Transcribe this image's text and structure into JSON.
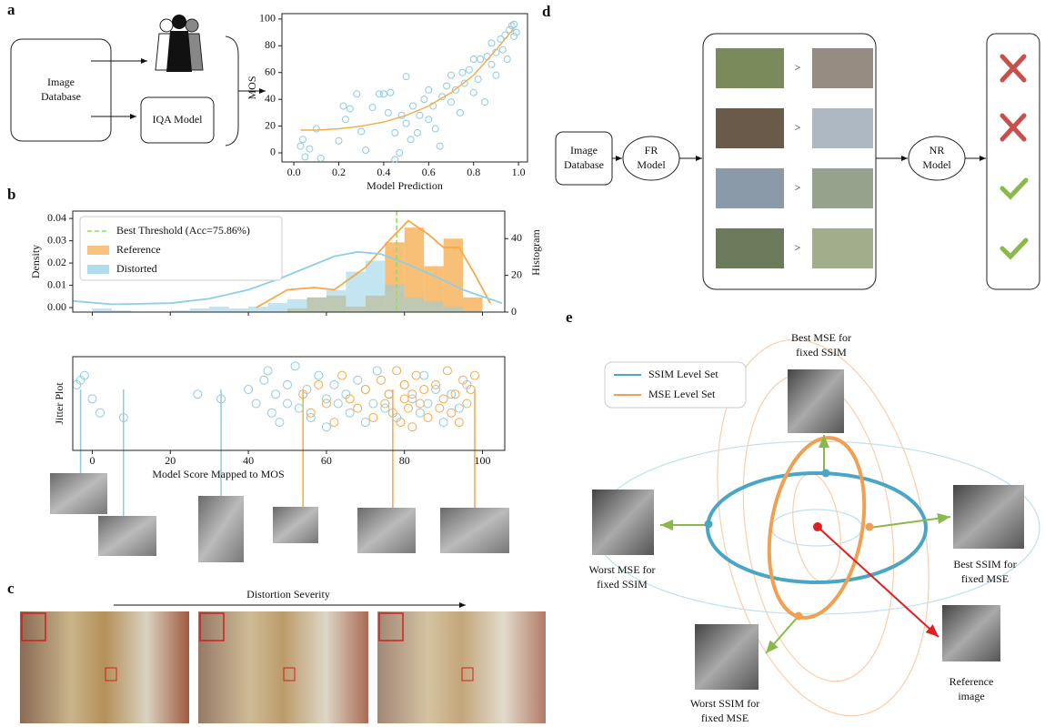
{
  "panel_labels": [
    "a",
    "b",
    "c",
    "d",
    "e"
  ],
  "chart_data": [
    {
      "type": "scatter",
      "xlabel": "Model Prediction",
      "ylabel": "MOS",
      "xlim": [
        -0.053,
        1.04
      ],
      "ylim": [
        -6.8,
        104
      ],
      "xticks": [
        {
          "value": 0,
          "label": "0.0"
        },
        {
          "value": 0.2,
          "label": "0.2"
        },
        {
          "value": 0.4,
          "label": "0.4"
        },
        {
          "value": 0.6,
          "label": "0.6"
        },
        {
          "value": 0.8,
          "label": "0.8"
        },
        {
          "value": 1,
          "label": "1.0"
        }
      ],
      "yticks": [
        0,
        20,
        40,
        60,
        80,
        100
      ],
      "points": {
        "color": "#8fcbe2",
        "x": [
          0.03,
          0.05,
          0.04,
          0.07,
          0.1,
          0.12,
          0.2,
          0.22,
          0.23,
          0.25,
          0.28,
          0.3,
          0.32,
          0.35,
          0.38,
          0.4,
          0.42,
          0.43,
          0.45,
          0.45,
          0.47,
          0.48,
          0.5,
          0.5,
          0.52,
          0.53,
          0.55,
          0.56,
          0.58,
          0.6,
          0.6,
          0.62,
          0.63,
          0.65,
          0.66,
          0.68,
          0.7,
          0.7,
          0.72,
          0.74,
          0.75,
          0.76,
          0.78,
          0.8,
          0.8,
          0.82,
          0.83,
          0.85,
          0.86,
          0.88,
          0.88,
          0.9,
          0.9,
          0.92,
          0.93,
          0.94,
          0.95,
          0.96,
          0.97,
          0.98,
          0.98,
          0.99
        ],
        "values": [
          5,
          -3,
          10,
          3,
          18,
          -4,
          9,
          35,
          25,
          33,
          44,
          16,
          2,
          34,
          44,
          44,
          30,
          45,
          15,
          -5,
          0,
          28,
          22,
          57,
          10,
          35,
          15,
          28,
          40,
          25,
          47,
          35,
          18,
          5,
          42,
          50,
          38,
          58,
          47,
          30,
          60,
          52,
          62,
          45,
          70,
          55,
          70,
          38,
          72,
          66,
          82,
          75,
          58,
          85,
          77,
          88,
          70,
          92,
          95,
          87,
          96,
          90
        ]
      },
      "fit": {
        "color": "#f0b050",
        "x": [
          0.03,
          0.1,
          0.2,
          0.3,
          0.4,
          0.5,
          0.6,
          0.7,
          0.8,
          0.9,
          0.98
        ],
        "values": [
          17,
          17,
          18,
          20,
          23,
          28,
          35,
          45,
          58,
          77,
          93
        ]
      }
    },
    {
      "type": "histogram",
      "ylabel": "Density",
      "y2label": "Histogram",
      "xlim": [
        -5,
        105.7
      ],
      "ylim": [
        -0.002,
        0.0433
      ],
      "yticks": [
        {
          "value": 0,
          "label": "0.00"
        },
        {
          "value": 0.01,
          "label": "0.01"
        },
        {
          "value": 0.02,
          "label": "0.02"
        },
        {
          "value": 0.03,
          "label": "0.03"
        },
        {
          "value": 0.04,
          "label": "0.04"
        }
      ],
      "y2lim": [
        0,
        55
      ],
      "y2ticks": [
        0,
        20,
        40
      ],
      "bins": [
        0,
        5,
        10,
        15,
        20,
        25,
        30,
        35,
        40,
        45,
        50,
        55,
        60,
        65,
        70,
        75,
        80,
        85,
        90,
        95,
        100
      ],
      "series": [
        {
          "name": "Reference",
          "color": "#f5a94a",
          "axis": "y2",
          "values": [
            0,
            0,
            0,
            0,
            0,
            0,
            0,
            0,
            0,
            0,
            2,
            8,
            9,
            3,
            9,
            38,
            46,
            25,
            40,
            8
          ],
          "density": {
            "x": [
              42,
              50,
              57,
              62,
              70,
              76,
              81,
              86,
              90,
              94,
              98,
              102
            ],
            "values": [
              0,
              0.008,
              0.009,
              0.008,
              0.018,
              0.03,
              0.039,
              0.033,
              0.027,
              0.027,
              0.015,
              0.002
            ]
          }
        },
        {
          "name": "Distorted",
          "color": "#8fcfe6",
          "axis": "y2",
          "values": [
            2,
            1,
            0,
            0,
            1,
            2,
            3,
            2,
            3,
            5,
            7,
            8,
            12,
            22,
            28,
            15,
            8,
            6,
            3,
            1
          ],
          "density": {
            "x": [
              -5,
              5,
              20,
              30,
              40,
              48,
              55,
              62,
              68,
              74,
              80,
              88,
              95,
              105
            ],
            "values": [
              0.003,
              0.0015,
              0.002,
              0.004,
              0.008,
              0.013,
              0.018,
              0.023,
              0.025,
              0.024,
              0.02,
              0.014,
              0.008,
              0.002
            ]
          }
        }
      ],
      "threshold": {
        "label": "Best Threshold (Acc=75.86%)",
        "value": 78,
        "color": "#9fd46a"
      }
    },
    {
      "type": "jitter",
      "xlabel": "Model Score Mapped to MOS",
      "ylabel": "Jitter Plot",
      "xlim": [
        -5,
        105.7
      ],
      "ylim": [
        0,
        1
      ],
      "xticks": [
        0,
        20,
        40,
        60,
        80,
        100
      ],
      "series": [
        {
          "color": "#8fcbe2",
          "x": [
            -3,
            -2,
            0,
            2,
            -4,
            8,
            27,
            33,
            40,
            42,
            44,
            45,
            46,
            47,
            48,
            50,
            50,
            52,
            53,
            55,
            56,
            58,
            60,
            60,
            62,
            63,
            65,
            66,
            68,
            70,
            70,
            72,
            73,
            75,
            76,
            78,
            80,
            82,
            84,
            85,
            86,
            88,
            90,
            92,
            94,
            96
          ],
          "values": [
            0.75,
            0.8,
            0.55,
            0.4,
            0.7,
            0.35,
            0.6,
            0.55,
            0.65,
            0.5,
            0.75,
            0.85,
            0.4,
            0.6,
            0.3,
            0.7,
            0.5,
            0.9,
            0.45,
            0.65,
            0.35,
            0.8,
            0.55,
            0.25,
            0.7,
            0.5,
            0.6,
            0.4,
            0.75,
            0.3,
            0.65,
            0.5,
            0.85,
            0.45,
            0.6,
            0.35,
            0.7,
            0.55,
            0.4,
            0.8,
            0.5,
            0.65,
            0.3,
            0.6,
            0.45,
            0.7
          ]
        },
        {
          "color": "#f5a94a",
          "x": [
            54,
            56,
            58,
            60,
            62,
            64,
            66,
            68,
            70,
            72,
            74,
            75,
            76,
            77,
            78,
            79,
            80,
            80,
            81,
            82,
            82,
            83,
            84,
            85,
            86,
            88,
            89,
            90,
            91,
            92,
            93,
            94,
            95,
            96,
            97,
            98
          ],
          "values": [
            0.6,
            0.4,
            0.7,
            0.5,
            0.3,
            0.8,
            0.55,
            0.45,
            0.65,
            0.35,
            0.75,
            0.5,
            0.6,
            0.4,
            0.85,
            0.3,
            0.55,
            0.7,
            0.45,
            0.6,
            0.25,
            0.8,
            0.5,
            0.65,
            0.35,
            0.7,
            0.45,
            0.55,
            0.85,
            0.4,
            0.6,
            0.3,
            0.75,
            0.5,
            0.65,
            0.8
          ]
        }
      ],
      "examples": [
        {
          "x": -3,
          "color": "#8fcbe2"
        },
        {
          "x": 8,
          "color": "#8fcbe2"
        },
        {
          "x": 33,
          "color": "#8fcbe2"
        },
        {
          "x": 54,
          "color": "#f5a94a"
        },
        {
          "x": 77,
          "color": "#f5a94a"
        },
        {
          "x": 98,
          "color": "#f5a94a"
        }
      ]
    }
  ],
  "panel_a": {
    "database": [
      "Image",
      "Database"
    ],
    "iqa_model": "IQA Model"
  },
  "panel_c": {
    "axis_label": "Distortion Severity"
  },
  "panel_d": {
    "database": [
      "Image",
      "Database"
    ],
    "fr_model": [
      "FR",
      "Model"
    ],
    "nr_model": [
      "NR",
      "Model"
    ],
    "comparisons": [
      ">",
      ">",
      ">",
      ">"
    ]
  },
  "panel_e": {
    "legend": [
      {
        "label": "SSIM Level Set",
        "color": "#4aa6c4"
      },
      {
        "label": "MSE Level Set",
        "color": "#f0a050"
      }
    ],
    "best_mse": [
      "Best MSE for",
      "fixed SSIM"
    ],
    "worst_mse": [
      "Worst MSE for",
      "fixed SSIM"
    ],
    "best_ssim": [
      "Best SSIM for",
      "fixed MSE"
    ],
    "worst_ssim": [
      "Worst SSIM for",
      "fixed MSE"
    ],
    "reference": [
      "Reference",
      "image"
    ]
  }
}
